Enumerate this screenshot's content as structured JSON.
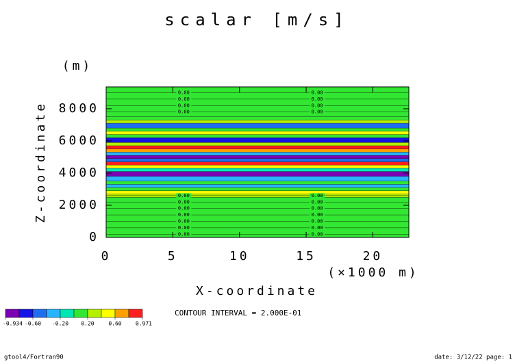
{
  "chart_data": {
    "type": "bands",
    "title": "scalar [m/s]",
    "y_unit": "(m)",
    "x_label": "X-coordinate",
    "x_unit": "(×1000 m)",
    "y_label": "Z-coordinate",
    "xlim": [
      0,
      22.7
    ],
    "xticks": [
      0,
      5,
      10,
      15,
      20
    ],
    "ylim": [
      0,
      9360
    ],
    "yticks": [
      0,
      2000,
      4000,
      6000,
      8000
    ],
    "z_edges": [
      0,
      2500,
      2700,
      2900,
      3100,
      3300,
      3500,
      3800,
      4100,
      4300,
      4500,
      4700,
      4900,
      5100,
      5300,
      5500,
      5700,
      5900,
      6200,
      6400,
      6600,
      6800,
      7100,
      7300,
      7500,
      9360
    ],
    "values": [
      0.1,
      0.3,
      0.5,
      0.1,
      -0.3,
      0.1,
      -0.3,
      -0.9,
      -0.1,
      0.5,
      0.9,
      -0.5,
      -0.9,
      -0.3,
      0.7,
      0.9,
      0.3,
      -0.7,
      0.1,
      0.5,
      0.1,
      -0.5,
      0.3,
      0.1,
      0.1
    ],
    "contours": [
      {
        "z": 200,
        "label": "0.00"
      },
      {
        "z": 600,
        "label": "0.00"
      },
      {
        "z": 1000,
        "label": "0.00"
      },
      {
        "z": 1400,
        "label": "0.00"
      },
      {
        "z": 1800,
        "label": "0.00"
      },
      {
        "z": 2200,
        "label": "0.00"
      },
      {
        "z": 2600,
        "label": "0.00"
      },
      {
        "z": 7800,
        "label": "0.00"
      },
      {
        "z": 8200,
        "label": "0.00"
      },
      {
        "z": 8600,
        "label": "0.00"
      },
      {
        "z": 9000,
        "label": "0.00"
      }
    ],
    "contour_label_x": [
      5,
      15
    ],
    "levels": [
      -0.934,
      -0.8,
      -0.6,
      -0.4,
      -0.2,
      0,
      0.2,
      0.4,
      0.6,
      0.8,
      0.971
    ],
    "colors": [
      "#7a00b4",
      "#1414e6",
      "#1e6ef0",
      "#28b4ff",
      "#00e6b4",
      "#32e632",
      "#b4f000",
      "#ffff00",
      "#ffa000",
      "#ff1e1e"
    ],
    "colorbar_ticks": [
      {
        "value": -0.934,
        "label": "-0.934"
      },
      {
        "value": -0.6,
        "label": "-0.60"
      },
      {
        "value": -0.2,
        "label": "-0.20"
      },
      {
        "value": 0.2,
        "label": "0.20"
      },
      {
        "value": 0.6,
        "label": "0.60"
      },
      0.971
    ],
    "contour_interval": "CONTOUR INTERVAL = 2.000E-01",
    "footer_left": "gtool4/Fortran90",
    "footer_right": "date: 3/12/22 page: 1"
  }
}
